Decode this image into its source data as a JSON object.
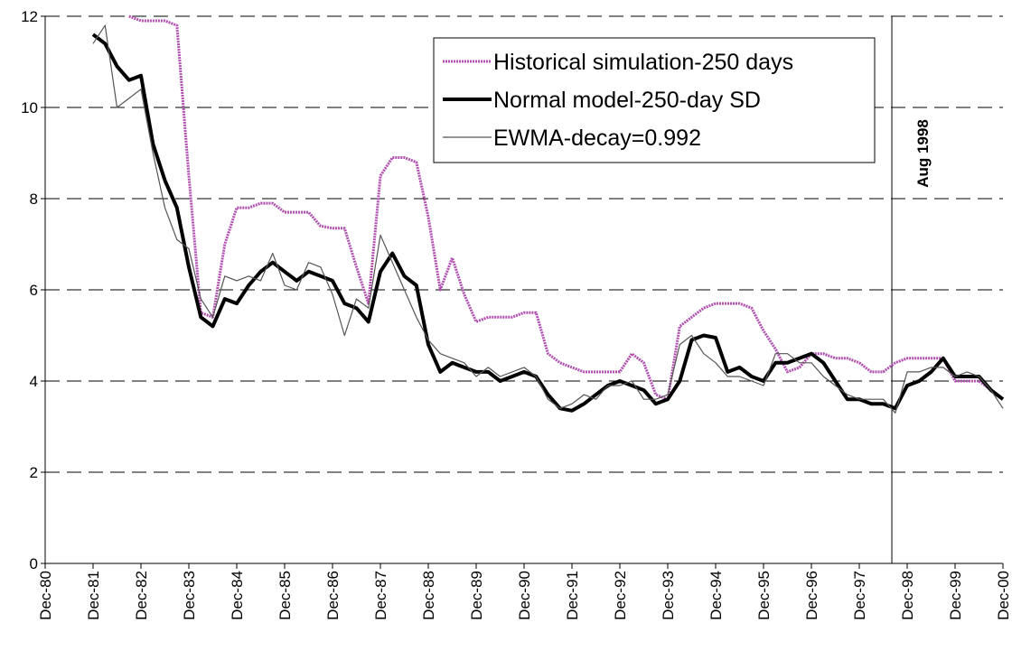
{
  "chart_data": {
    "type": "line",
    "x": [
      1981.92,
      1982.17,
      1982.42,
      1982.67,
      1982.92,
      1983.17,
      1983.42,
      1983.67,
      1983.92,
      1984.17,
      1984.42,
      1984.67,
      1984.92,
      1985.17,
      1985.42,
      1985.67,
      1985.92,
      1986.17,
      1986.42,
      1986.67,
      1986.92,
      1987.17,
      1987.42,
      1987.67,
      1987.92,
      1988.17,
      1988.42,
      1988.67,
      1988.92,
      1989.17,
      1989.42,
      1989.67,
      1989.92,
      1990.17,
      1990.42,
      1990.67,
      1990.92,
      1991.17,
      1991.42,
      1991.67,
      1991.92,
      1992.17,
      1992.42,
      1992.67,
      1992.92,
      1993.17,
      1993.42,
      1993.67,
      1993.92,
      1994.17,
      1994.42,
      1994.67,
      1994.92,
      1995.17,
      1995.42,
      1995.67,
      1995.92,
      1996.17,
      1996.42,
      1996.67,
      1996.92,
      1997.17,
      1997.42,
      1997.67,
      1997.92,
      1998.17,
      1998.42,
      1998.67,
      1998.92,
      1999.17,
      1999.42,
      1999.67,
      1999.92,
      2000.17,
      2000.42,
      2000.67,
      2000.92
    ],
    "series": [
      {
        "name": "Historical simulation-250 days",
        "color": "#b050b0",
        "style": "dotted",
        "values": [
          null,
          null,
          null,
          12.0,
          11.9,
          11.9,
          11.9,
          11.8,
          8.5,
          5.5,
          5.4,
          7.0,
          7.8,
          7.8,
          7.9,
          7.9,
          7.7,
          7.7,
          7.7,
          7.4,
          7.35,
          7.35,
          6.5,
          5.7,
          8.5,
          8.9,
          8.9,
          8.8,
          7.6,
          6.0,
          6.7,
          5.9,
          5.3,
          5.4,
          5.4,
          5.4,
          5.5,
          5.5,
          4.6,
          4.4,
          4.3,
          4.2,
          4.2,
          4.2,
          4.2,
          4.6,
          4.4,
          3.7,
          3.6,
          5.2,
          5.4,
          5.6,
          5.7,
          5.7,
          5.7,
          5.6,
          5.1,
          4.7,
          4.2,
          4.3,
          4.6,
          4.6,
          4.5,
          4.5,
          4.4,
          4.2,
          4.2,
          4.4,
          4.5,
          4.5,
          4.5,
          4.5,
          4.0,
          4.0,
          4.0,
          3.8,
          3.6
        ]
      },
      {
        "name": "Normal model-250-day SD",
        "color": "#000000",
        "style": "thick",
        "values": [
          11.6,
          11.4,
          10.9,
          10.6,
          10.7,
          9.2,
          8.4,
          7.8,
          6.5,
          5.4,
          5.2,
          5.8,
          5.7,
          6.1,
          6.4,
          6.6,
          6.4,
          6.2,
          6.4,
          6.3,
          6.2,
          5.7,
          5.6,
          5.3,
          6.4,
          6.8,
          6.3,
          6.1,
          4.8,
          4.2,
          4.4,
          4.3,
          4.2,
          4.2,
          4.0,
          4.1,
          4.2,
          4.1,
          3.7,
          3.4,
          3.35,
          3.5,
          3.7,
          3.9,
          4.0,
          3.9,
          3.8,
          3.5,
          3.6,
          4.0,
          4.9,
          5.0,
          4.95,
          4.2,
          4.3,
          4.1,
          4.0,
          4.4,
          4.4,
          4.5,
          4.6,
          4.4,
          4.0,
          3.6,
          3.6,
          3.5,
          3.5,
          3.4,
          3.9,
          4.0,
          4.2,
          4.5,
          4.1,
          4.1,
          4.1,
          3.8,
          3.6
        ]
      },
      {
        "name": "EWMA-decay=0.992",
        "color": "#555555",
        "style": "thin",
        "values": [
          11.4,
          11.8,
          10.0,
          10.2,
          10.4,
          9.0,
          7.8,
          7.1,
          6.9,
          5.8,
          5.4,
          6.3,
          6.2,
          6.3,
          6.2,
          6.8,
          6.1,
          6.0,
          6.6,
          6.5,
          5.9,
          5.0,
          5.8,
          5.6,
          7.2,
          6.6,
          6.0,
          5.4,
          4.9,
          4.6,
          4.5,
          4.4,
          4.1,
          4.3,
          4.1,
          4.2,
          4.3,
          4.1,
          3.6,
          3.4,
          3.5,
          3.7,
          3.6,
          3.9,
          3.9,
          4.0,
          3.6,
          3.6,
          3.7,
          4.8,
          5.0,
          4.6,
          4.4,
          4.1,
          4.1,
          4.0,
          3.9,
          4.6,
          4.6,
          4.4,
          4.4,
          4.1,
          3.9,
          3.7,
          3.6,
          3.6,
          3.6,
          3.3,
          4.2,
          4.2,
          4.3,
          4.3,
          4.1,
          4.2,
          4.1,
          3.8,
          3.4
        ]
      }
    ],
    "xlim": [
      1980.92,
      2000.92
    ],
    "xticks": [
      {
        "value": 1980.92,
        "label": "Dec-80"
      },
      {
        "value": 1981.92,
        "label": "Dec-81"
      },
      {
        "value": 1982.92,
        "label": "Dec-82"
      },
      {
        "value": 1983.92,
        "label": "Dec-83"
      },
      {
        "value": 1984.92,
        "label": "Dec-84"
      },
      {
        "value": 1985.92,
        "label": "Dec-85"
      },
      {
        "value": 1986.92,
        "label": "Dec-86"
      },
      {
        "value": 1987.92,
        "label": "Dec-87"
      },
      {
        "value": 1988.92,
        "label": "Dec-88"
      },
      {
        "value": 1989.92,
        "label": "Dec-89"
      },
      {
        "value": 1990.92,
        "label": "Dec-90"
      },
      {
        "value": 1991.92,
        "label": "Dec-91"
      },
      {
        "value": 1992.92,
        "label": "Dec-92"
      },
      {
        "value": 1993.92,
        "label": "Dec-93"
      },
      {
        "value": 1994.92,
        "label": "Dec-94"
      },
      {
        "value": 1995.92,
        "label": "Dec-95"
      },
      {
        "value": 1996.92,
        "label": "Dec-96"
      },
      {
        "value": 1997.92,
        "label": "Dec-97"
      },
      {
        "value": 1998.92,
        "label": "Dec-98"
      },
      {
        "value": 1999.92,
        "label": "Dec-99"
      },
      {
        "value": 2000.92,
        "label": "Dec-00"
      }
    ],
    "ylim": [
      0,
      12
    ],
    "yticks": [
      0,
      2,
      4,
      6,
      8,
      10,
      12
    ],
    "grid": true,
    "legend": "top-right",
    "annotations": [
      {
        "text": "Aug 1998",
        "x": 1998.6
      }
    ]
  }
}
